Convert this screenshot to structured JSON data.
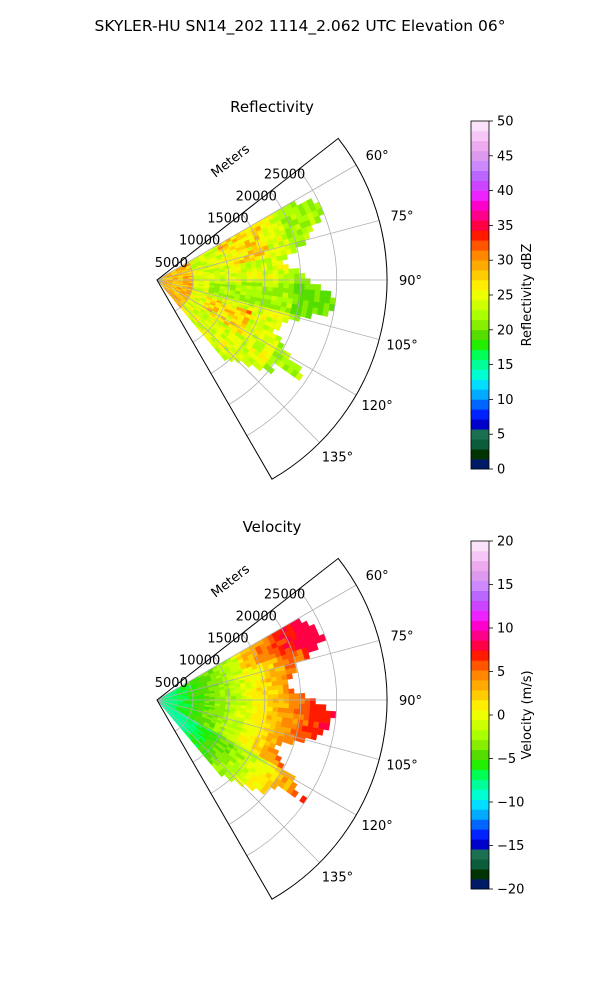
{
  "figure": {
    "title": "SKYLER-HU  SN14_202  1114_2.062 UTC Elevation 06°"
  },
  "chart_data": [
    {
      "type": "heatmap",
      "projection": "polar-sector",
      "title": "Reflectivity",
      "radial_axis_label": "Meters",
      "radial_ticks": [
        5000,
        10000,
        15000,
        20000,
        25000
      ],
      "radial_tick_labels": [
        "5000",
        "10000",
        "15000",
        "20000",
        "25000"
      ],
      "rlim": [
        0,
        32000
      ],
      "theta_range_deg": [
        52,
        150
      ],
      "theta_ticks_deg": [
        60,
        75,
        90,
        105,
        120,
        135
      ],
      "theta_tick_labels": [
        "60°",
        "75°",
        "90°",
        "105°",
        "120°",
        "135°"
      ],
      "grid": true,
      "data_extent": {
        "theta_deg": [
          60,
          140
        ],
        "r_max": 25000
      },
      "colorbar": {
        "label": "Reflectivity dBZ",
        "range": [
          0,
          50
        ],
        "ticks": [
          "0",
          "5",
          "10",
          "15",
          "20",
          "25",
          "30",
          "35",
          "40",
          "45",
          "50"
        ],
        "colors": [
          "#001a66",
          "#003300",
          "#0a5c3a",
          "#1a7050",
          "#0000cc",
          "#0022ff",
          "#0066ff",
          "#00aaff",
          "#00ddff",
          "#00ffd0",
          "#00ff99",
          "#00ff55",
          "#22ee00",
          "#55dd00",
          "#88ee00",
          "#aaff00",
          "#ccff00",
          "#eeff00",
          "#ffee00",
          "#ffcc00",
          "#ffaa00",
          "#ff8800",
          "#ff5500",
          "#ff1a00",
          "#ff0044",
          "#ff0088",
          "#ff00cc",
          "#ee22ff",
          "#cc44ff",
          "#bb66ff",
          "#cc88ff",
          "#dd99ee",
          "#eeaaee",
          "#f6c6f6",
          "#fbe2fb"
        ]
      }
    },
    {
      "type": "heatmap",
      "projection": "polar-sector",
      "title": "Velocity",
      "radial_axis_label": "Meters",
      "radial_ticks": [
        5000,
        10000,
        15000,
        20000,
        25000
      ],
      "radial_tick_labels": [
        "5000",
        "10000",
        "15000",
        "20000",
        "25000"
      ],
      "rlim": [
        0,
        32000
      ],
      "theta_range_deg": [
        52,
        150
      ],
      "theta_ticks_deg": [
        60,
        75,
        90,
        105,
        120,
        135
      ],
      "theta_tick_labels": [
        "60°",
        "75°",
        "90°",
        "105°",
        "120°",
        "135°"
      ],
      "grid": true,
      "data_extent": {
        "theta_deg": [
          60,
          140
        ],
        "r_max": 25000
      },
      "colorbar": {
        "label": "Velocity (m/s)",
        "range": [
          -20,
          20
        ],
        "ticks": [
          "−20",
          "−15",
          "−10",
          "−5",
          "0",
          "5",
          "10",
          "15",
          "20"
        ],
        "colors": [
          "#001a66",
          "#003300",
          "#0a5c3a",
          "#1a7050",
          "#0000cc",
          "#0022ff",
          "#0066ff",
          "#00aaff",
          "#00ddff",
          "#00ffd0",
          "#00ff99",
          "#00ff55",
          "#22ee00",
          "#55dd00",
          "#88ee00",
          "#aaff00",
          "#ccff00",
          "#eeff00",
          "#ffee00",
          "#ffcc00",
          "#ffaa00",
          "#ff8800",
          "#ff5500",
          "#ff1a00",
          "#ff0044",
          "#ff0088",
          "#ff00cc",
          "#ee22ff",
          "#cc44ff",
          "#bb66ff",
          "#cc88ff",
          "#dd99ee",
          "#eeaaee",
          "#f6c6f6",
          "#fbe2fb"
        ]
      }
    }
  ]
}
